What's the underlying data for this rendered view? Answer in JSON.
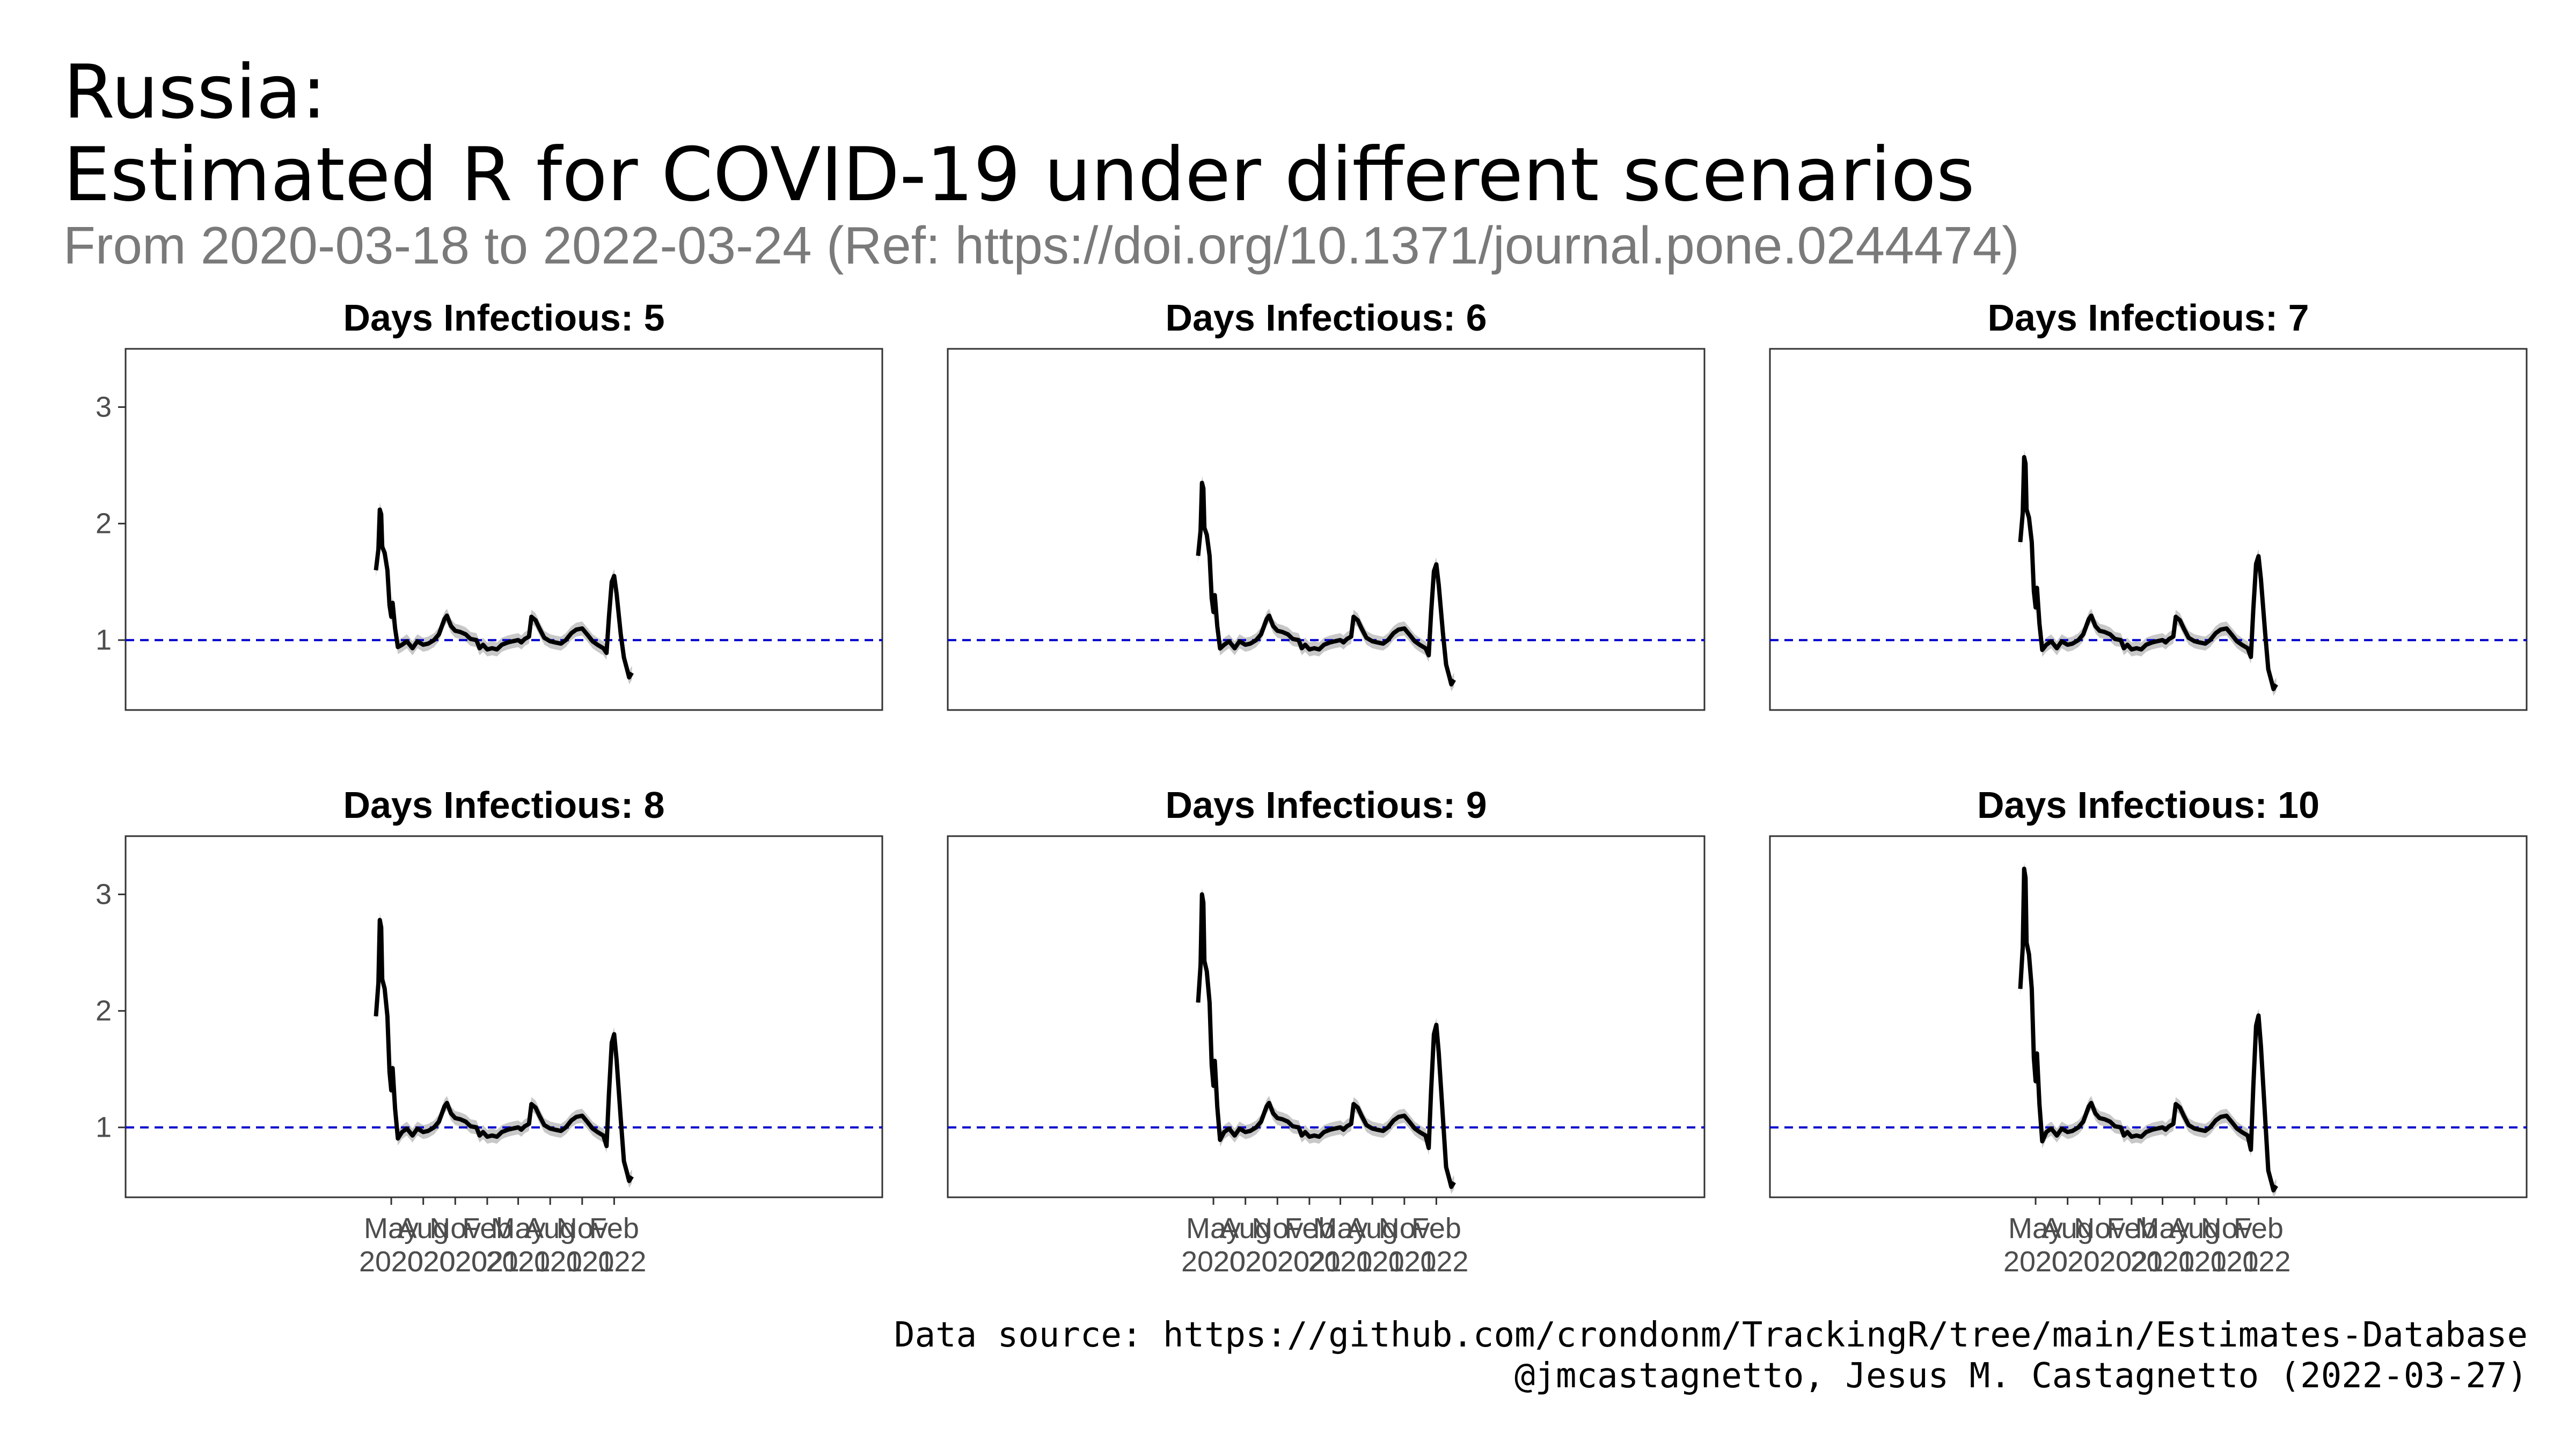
{
  "title_line1": "Russia:",
  "title_line2": "Estimated R for COVID-19 under different scenarios",
  "subtitle": "From 2020-03-18 to 2022-03-24 (Ref: https://doi.org/10.1371/journal.pone.0244474)",
  "caption_line1": "Data source: https://github.com/crondonm/TrackingR/tree/main/Estimates-Database",
  "caption_line2": "@jmcastagnetto, Jesus M. Castagnetto (2022-03-27)",
  "colors": {
    "line": "#000000",
    "ribbon": "#c8c8c8",
    "reference": "#0000cc",
    "panel_border": "#333333"
  },
  "chart_data": {
    "type": "line",
    "facet_by": "days_infectious",
    "layout": "3x2 grid of panels with shared axes",
    "reference_line": {
      "y": 1,
      "style": "dashed",
      "color": "#0000cc"
    },
    "ribbon": "grey confidence band around each line",
    "x_domain": [
      "2020-03-18",
      "2022-03-24"
    ],
    "ylim": [
      0.4,
      3.5
    ],
    "y_ticks": [
      1,
      2,
      3
    ],
    "x_ticks": [
      {
        "date": "2020-05-01",
        "label": [
          "May",
          "2020"
        ]
      },
      {
        "date": "2020-08-01",
        "label": [
          "Aug",
          "2020"
        ]
      },
      {
        "date": "2020-11-01",
        "label": [
          "Nov",
          "2020"
        ]
      },
      {
        "date": "2021-02-01",
        "label": [
          "Feb",
          "2021"
        ]
      },
      {
        "date": "2021-05-01",
        "label": [
          "May",
          "2021"
        ]
      },
      {
        "date": "2021-08-01",
        "label": [
          "Aug",
          "2021"
        ]
      },
      {
        "date": "2021-11-01",
        "label": [
          "Nov",
          "2021"
        ]
      },
      {
        "date": "2022-02-01",
        "label": [
          "Feb",
          "2022"
        ]
      }
    ],
    "panels": [
      {
        "title": "Days Infectious: 5",
        "peak_r": 2.12,
        "omicron_peak_r": 1.55,
        "end_r": 0.72
      },
      {
        "title": "Days Infectious: 6",
        "peak_r": 2.35,
        "omicron_peak_r": 1.65,
        "end_r": 0.66
      },
      {
        "title": "Days Infectious: 7",
        "peak_r": 2.57,
        "omicron_peak_r": 1.72,
        "end_r": 0.62
      },
      {
        "title": "Days Infectious: 8",
        "peak_r": 2.78,
        "omicron_peak_r": 1.8,
        "end_r": 0.58
      },
      {
        "title": "Days Infectious: 9",
        "peak_r": 3.0,
        "omicron_peak_r": 1.88,
        "end_r": 0.53
      },
      {
        "title": "Days Infectious: 10",
        "peak_r": 3.22,
        "omicron_peak_r": 1.96,
        "end_r": 0.5
      }
    ],
    "base_shape": [
      {
        "date": "2020-03-18",
        "r": 1.6
      },
      {
        "date": "2020-03-25",
        "r": 1.78
      },
      {
        "date": "2020-03-29",
        "r": 2.12
      },
      {
        "date": "2020-04-02",
        "r": 2.08
      },
      {
        "date": "2020-04-05",
        "r": 1.8
      },
      {
        "date": "2020-04-12",
        "r": 1.75
      },
      {
        "date": "2020-04-20",
        "r": 1.6
      },
      {
        "date": "2020-04-26",
        "r": 1.3
      },
      {
        "date": "2020-05-01",
        "r": 1.2
      },
      {
        "date": "2020-05-05",
        "r": 1.32
      },
      {
        "date": "2020-05-12",
        "r": 1.1
      },
      {
        "date": "2020-05-20",
        "r": 0.94
      },
      {
        "date": "2020-06-01",
        "r": 0.96
      },
      {
        "date": "2020-06-15",
        "r": 0.99
      },
      {
        "date": "2020-07-01",
        "r": 0.93
      },
      {
        "date": "2020-07-15",
        "r": 0.99
      },
      {
        "date": "2020-08-01",
        "r": 0.96
      },
      {
        "date": "2020-08-15",
        "r": 0.97
      },
      {
        "date": "2020-09-01",
        "r": 1.0
      },
      {
        "date": "2020-09-15",
        "r": 1.05
      },
      {
        "date": "2020-10-01",
        "r": 1.18
      },
      {
        "date": "2020-10-08",
        "r": 1.21
      },
      {
        "date": "2020-10-20",
        "r": 1.12
      },
      {
        "date": "2020-11-01",
        "r": 1.08
      },
      {
        "date": "2020-11-15",
        "r": 1.07
      },
      {
        "date": "2020-12-01",
        "r": 1.05
      },
      {
        "date": "2020-12-15",
        "r": 1.01
      },
      {
        "date": "2021-01-01",
        "r": 1.0
      },
      {
        "date": "2021-01-10",
        "r": 0.93
      },
      {
        "date": "2021-01-20",
        "r": 0.96
      },
      {
        "date": "2021-02-01",
        "r": 0.92
      },
      {
        "date": "2021-02-15",
        "r": 0.93
      },
      {
        "date": "2021-03-01",
        "r": 0.92
      },
      {
        "date": "2021-03-15",
        "r": 0.96
      },
      {
        "date": "2021-04-01",
        "r": 0.98
      },
      {
        "date": "2021-04-15",
        "r": 0.99
      },
      {
        "date": "2021-05-01",
        "r": 1.0
      },
      {
        "date": "2021-05-10",
        "r": 0.98
      },
      {
        "date": "2021-05-20",
        "r": 1.01
      },
      {
        "date": "2021-06-01",
        "r": 1.03
      },
      {
        "date": "2021-06-08",
        "r": 1.2
      },
      {
        "date": "2021-06-20",
        "r": 1.17
      },
      {
        "date": "2021-07-01",
        "r": 1.1
      },
      {
        "date": "2021-07-15",
        "r": 1.02
      },
      {
        "date": "2021-08-01",
        "r": 0.99
      },
      {
        "date": "2021-08-15",
        "r": 0.98
      },
      {
        "date": "2021-09-01",
        "r": 0.97
      },
      {
        "date": "2021-09-15",
        "r": 1.0
      },
      {
        "date": "2021-10-01",
        "r": 1.06
      },
      {
        "date": "2021-10-15",
        "r": 1.09
      },
      {
        "date": "2021-11-01",
        "r": 1.1
      },
      {
        "date": "2021-11-15",
        "r": 1.05
      },
      {
        "date": "2021-12-01",
        "r": 0.99
      },
      {
        "date": "2021-12-15",
        "r": 0.96
      },
      {
        "date": "2022-01-01",
        "r": 0.93
      },
      {
        "date": "2022-01-10",
        "r": 0.89
      },
      {
        "date": "2022-01-17",
        "r": 1.2
      },
      {
        "date": "2022-01-25",
        "r": 1.5
      },
      {
        "date": "2022-02-01",
        "r": 1.55
      },
      {
        "date": "2022-02-08",
        "r": 1.4
      },
      {
        "date": "2022-02-20",
        "r": 1.05
      },
      {
        "date": "2022-03-01",
        "r": 0.85
      },
      {
        "date": "2022-03-10",
        "r": 0.75
      },
      {
        "date": "2022-03-16",
        "r": 0.68
      },
      {
        "date": "2022-03-24",
        "r": 0.72
      }
    ]
  }
}
